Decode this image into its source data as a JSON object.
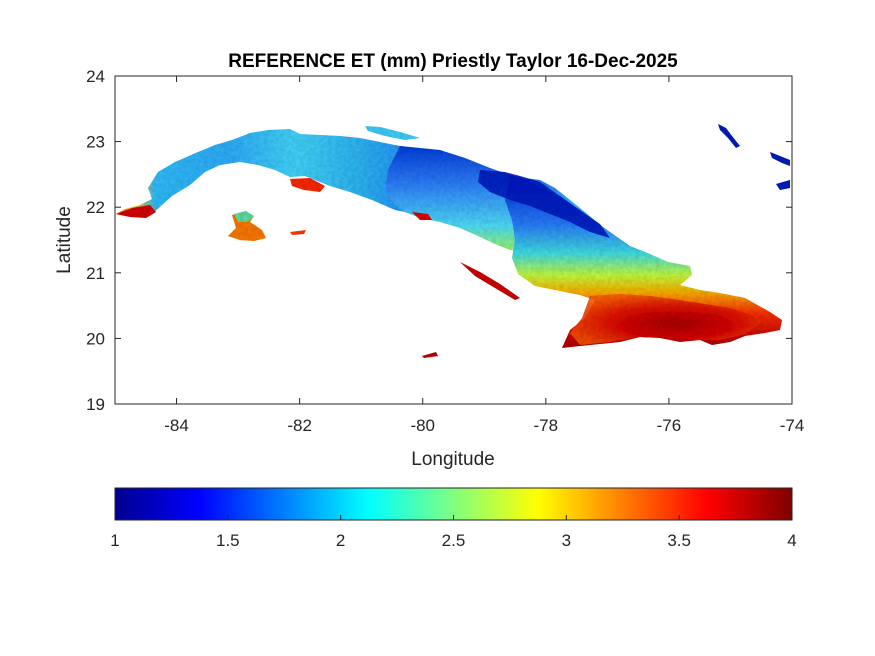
{
  "title": "REFERENCE ET (mm) Priestly Taylor 16-Dec-2025",
  "map": {
    "xlabel": "Longitude",
    "ylabel": "Latitude",
    "xlim": [
      -85,
      -74
    ],
    "ylim": [
      19,
      24
    ],
    "xticks": [
      -84,
      -82,
      -80,
      -78,
      -76,
      -74
    ],
    "yticks": [
      19,
      20,
      21,
      22,
      23,
      24
    ],
    "region": "Cuba",
    "spatial_pattern": "west and central low-to-moderate values (blue/cyan), north-central coast lowest (dark blue), southeast highest (red/dark red)"
  },
  "colorbar": {
    "colormap": "jet",
    "range": [
      1,
      4
    ],
    "ticks": [
      "1",
      "1.5",
      "2",
      "2.5",
      "3",
      "3.5",
      "4"
    ],
    "colors": [
      "#00008f",
      "#0000ff",
      "#007fff",
      "#00ffff",
      "#7fff7f",
      "#ffff00",
      "#ff7f00",
      "#ff0000",
      "#7f0000"
    ]
  }
}
